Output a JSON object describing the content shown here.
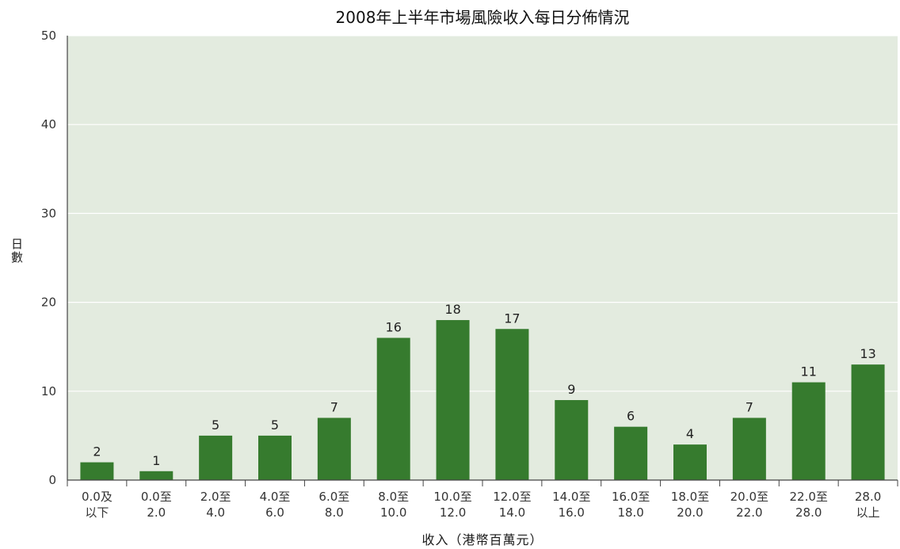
{
  "chart_data": {
    "type": "bar",
    "title": "2008年上半年市場風險收入每日分佈情況",
    "xlabel": "收入（港幣百萬元）",
    "ylabel": "日數",
    "ylim": [
      0,
      50
    ],
    "yticks": [
      0,
      10,
      20,
      30,
      40,
      50
    ],
    "grid": true,
    "categories": [
      [
        "0.0及",
        "以下"
      ],
      [
        "0.0至",
        "2.0"
      ],
      [
        "2.0至",
        "4.0"
      ],
      [
        "4.0至",
        "6.0"
      ],
      [
        "6.0至",
        "8.0"
      ],
      [
        "8.0至",
        "10.0"
      ],
      [
        "10.0至",
        "12.0"
      ],
      [
        "12.0至",
        "14.0"
      ],
      [
        "14.0至",
        "16.0"
      ],
      [
        "16.0至",
        "18.0"
      ],
      [
        "18.0至",
        "20.0"
      ],
      [
        "20.0至",
        "22.0"
      ],
      [
        "22.0至",
        "28.0"
      ],
      [
        "28.0",
        "以上"
      ]
    ],
    "values": [
      2,
      1,
      5,
      5,
      7,
      16,
      18,
      17,
      9,
      6,
      4,
      7,
      11,
      13
    ],
    "colors": {
      "plot_bg": "#e3ebdf",
      "bar": "#367b2e",
      "grid": "#ffffff",
      "axis": "#444444"
    }
  }
}
